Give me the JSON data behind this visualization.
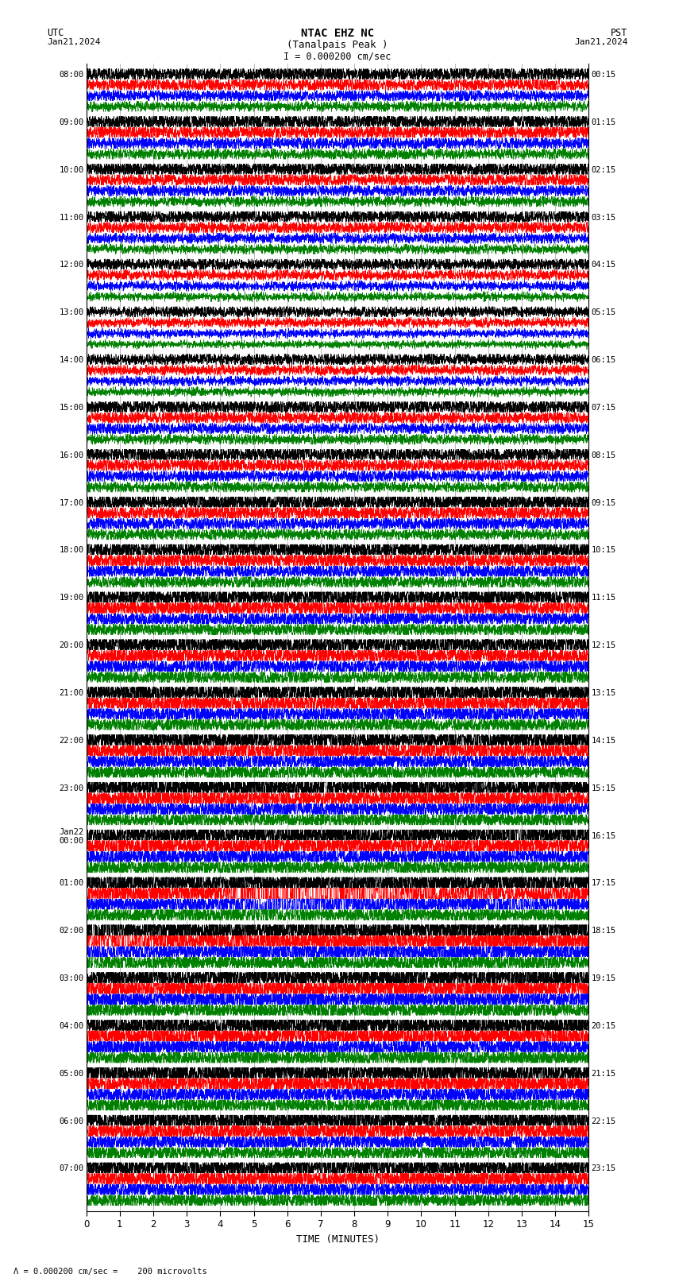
{
  "title_line1": "NTAC EHZ NC",
  "title_line2": "(Tanalpais Peak )",
  "title_line3": "I = 0.000200 cm/sec",
  "utc_label": "UTC",
  "pst_label": "PST",
  "date_left": "Jan21,2024",
  "date_right": "Jan21,2024",
  "xlabel": "TIME (MINUTES)",
  "footnote": "= 0.000200 cm/sec =    200 microvolts",
  "utc_times": [
    "08:00",
    "09:00",
    "10:00",
    "11:00",
    "12:00",
    "13:00",
    "14:00",
    "15:00",
    "16:00",
    "17:00",
    "18:00",
    "19:00",
    "20:00",
    "21:00",
    "22:00",
    "23:00",
    "Jan22\n00:00",
    "01:00",
    "02:00",
    "03:00",
    "04:00",
    "05:00",
    "06:00",
    "07:00"
  ],
  "pst_times": [
    "00:15",
    "01:15",
    "02:15",
    "03:15",
    "04:15",
    "05:15",
    "06:15",
    "07:15",
    "08:15",
    "09:15",
    "10:15",
    "11:15",
    "12:15",
    "13:15",
    "14:15",
    "15:15",
    "16:15",
    "17:15",
    "18:15",
    "19:15",
    "20:15",
    "21:15",
    "22:15",
    "23:15"
  ],
  "num_rows": 24,
  "traces_per_row": 4,
  "minutes": 15,
  "colors": [
    "black",
    "red",
    "blue",
    "green"
  ],
  "bg_color": "#ffffff",
  "figsize": [
    8.5,
    16.13
  ],
  "dpi": 100,
  "seed": 12345
}
